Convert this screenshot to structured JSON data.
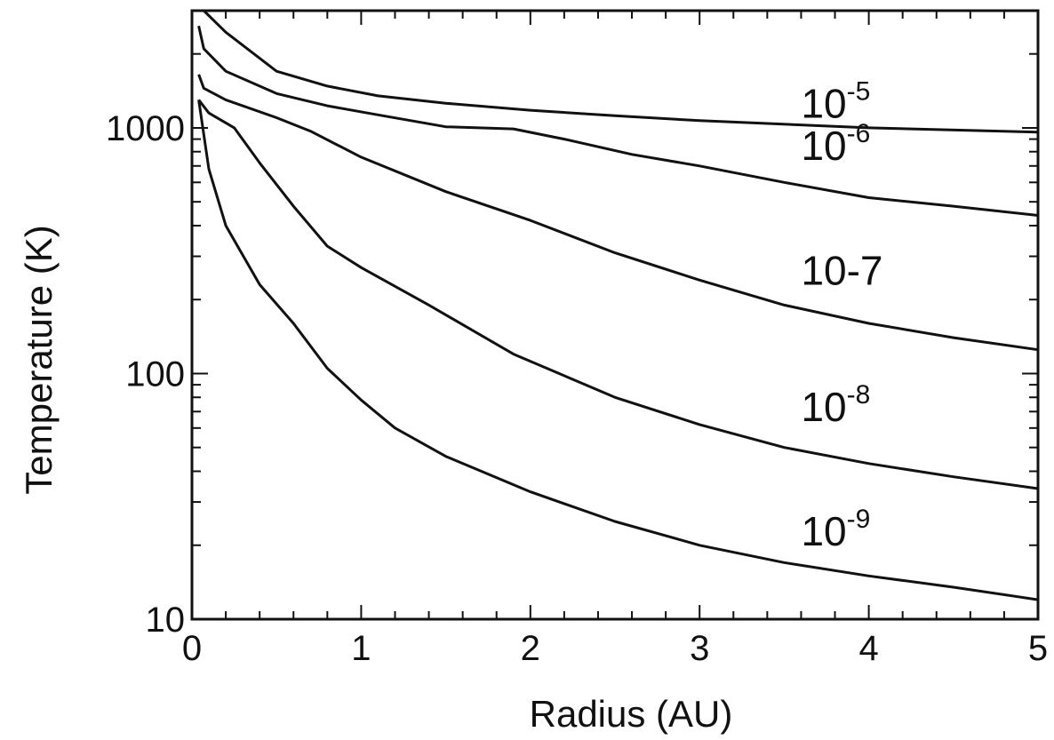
{
  "chart_data": {
    "type": "line",
    "xlabel": "Radius (AU)",
    "ylabel": "Temperature (K)",
    "xlim": [
      0,
      5
    ],
    "ylim": [
      10,
      3000
    ],
    "yscale": "log",
    "grid": false,
    "x_ticks": [
      0,
      1,
      2,
      3,
      4,
      5
    ],
    "x_tick_labels": [
      "0",
      "1",
      "2",
      "3",
      "4",
      "5"
    ],
    "y_ticks": [
      10,
      100,
      1000
    ],
    "y_tick_labels": [
      "10",
      "100",
      "1000"
    ],
    "series": [
      {
        "name": "10-5",
        "label_base": "10",
        "label_exp": "-5",
        "x": [
          0.07,
          0.2,
          0.5,
          0.8,
          1.1,
          1.5,
          2,
          2.5,
          3,
          4,
          5
        ],
        "y": [
          3000,
          2450,
          1700,
          1480,
          1350,
          1260,
          1180,
          1120,
          1070,
          1000,
          960
        ]
      },
      {
        "name": "10-6",
        "label_base": "10",
        "label_exp": "-6",
        "x": [
          0.04,
          0.07,
          0.2,
          0.5,
          0.8,
          1.1,
          1.5,
          1.9,
          2.2,
          2.6,
          3,
          3.5,
          4,
          4.5,
          5
        ],
        "y": [
          2600,
          2100,
          1700,
          1380,
          1230,
          1130,
          1010,
          990,
          900,
          780,
          700,
          600,
          520,
          480,
          440
        ]
      },
      {
        "name": "10-7",
        "label_base": "10",
        "label_exp": "",
        "x": [
          0.04,
          0.07,
          0.2,
          0.5,
          0.7,
          1,
          1.5,
          2,
          2.5,
          3,
          3.5,
          4,
          4.5,
          5
        ],
        "y": [
          1650,
          1450,
          1300,
          1100,
          970,
          760,
          550,
          420,
          310,
          240,
          190,
          160,
          140,
          125
        ]
      },
      {
        "name": "10-8",
        "label_base": "10",
        "label_exp": "-8",
        "x": [
          0.04,
          0.1,
          0.25,
          0.4,
          0.6,
          0.8,
          1,
          1.4,
          1.9,
          2.5,
          3,
          3.5,
          4,
          4.5,
          5
        ],
        "y": [
          1300,
          1150,
          1000,
          720,
          480,
          330,
          270,
          190,
          120,
          80,
          62,
          50,
          43,
          38,
          34
        ]
      },
      {
        "name": "10-9",
        "label_base": "10",
        "label_exp": "-9",
        "x": [
          0.04,
          0.1,
          0.2,
          0.4,
          0.6,
          0.8,
          1,
          1.2,
          1.5,
          2,
          2.5,
          3,
          3.5,
          4,
          4.5,
          5
        ],
        "y": [
          1300,
          680,
          400,
          230,
          160,
          105,
          78,
          60,
          46,
          33,
          25,
          20,
          17,
          15,
          13.5,
          12
        ]
      }
    ],
    "labels_at_x": [
      3.6,
      3.6,
      3.6,
      3.6,
      3.6
    ],
    "labels_y": [
      1100,
      740,
      230,
      64,
      20
    ]
  }
}
